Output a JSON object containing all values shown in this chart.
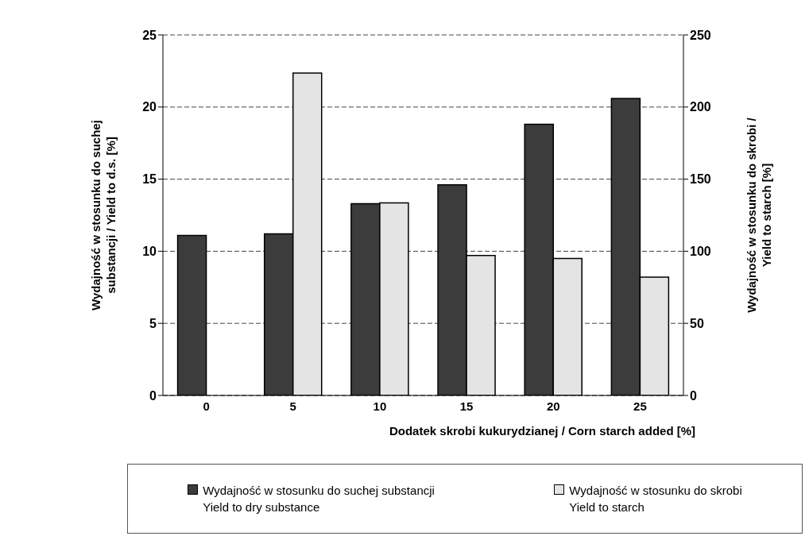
{
  "chart_data": {
    "type": "bar",
    "xlabel": "Dodatek skrobi kukurydzianej  / Corn starch added [%]",
    "ylabel": "Wydajność w stosunku do suchej\nsubstancji / Yield to d.s.  [%]",
    "y2label": "Wydajność  w stosunku do skrobi /\nYield to starch [%]",
    "categories": [
      "0",
      "5",
      "10",
      "15",
      "20",
      "25"
    ],
    "series": [
      {
        "name": "Wydajność w stosunku do suchej substancji\nYield to dry substance",
        "color": "#3c3c3c",
        "values": [
          11.1,
          11.2,
          13.3,
          14.6,
          18.8,
          20.6
        ]
      },
      {
        "name": "Wydajność w stosunku do skrobi\nYield to starch",
        "color": "#e4e4e4",
        "axis": "y2",
        "values": [
          null,
          223.5,
          133.6,
          97,
          95,
          82
        ]
      }
    ],
    "ylim": [
      0,
      25
    ],
    "yticks": [
      0,
      5,
      10,
      15,
      20,
      25
    ],
    "y2lim": [
      0,
      250
    ],
    "y2ticks": [
      0,
      50,
      100,
      150,
      200,
      250
    ],
    "grid": "y",
    "legend": "bottom"
  }
}
